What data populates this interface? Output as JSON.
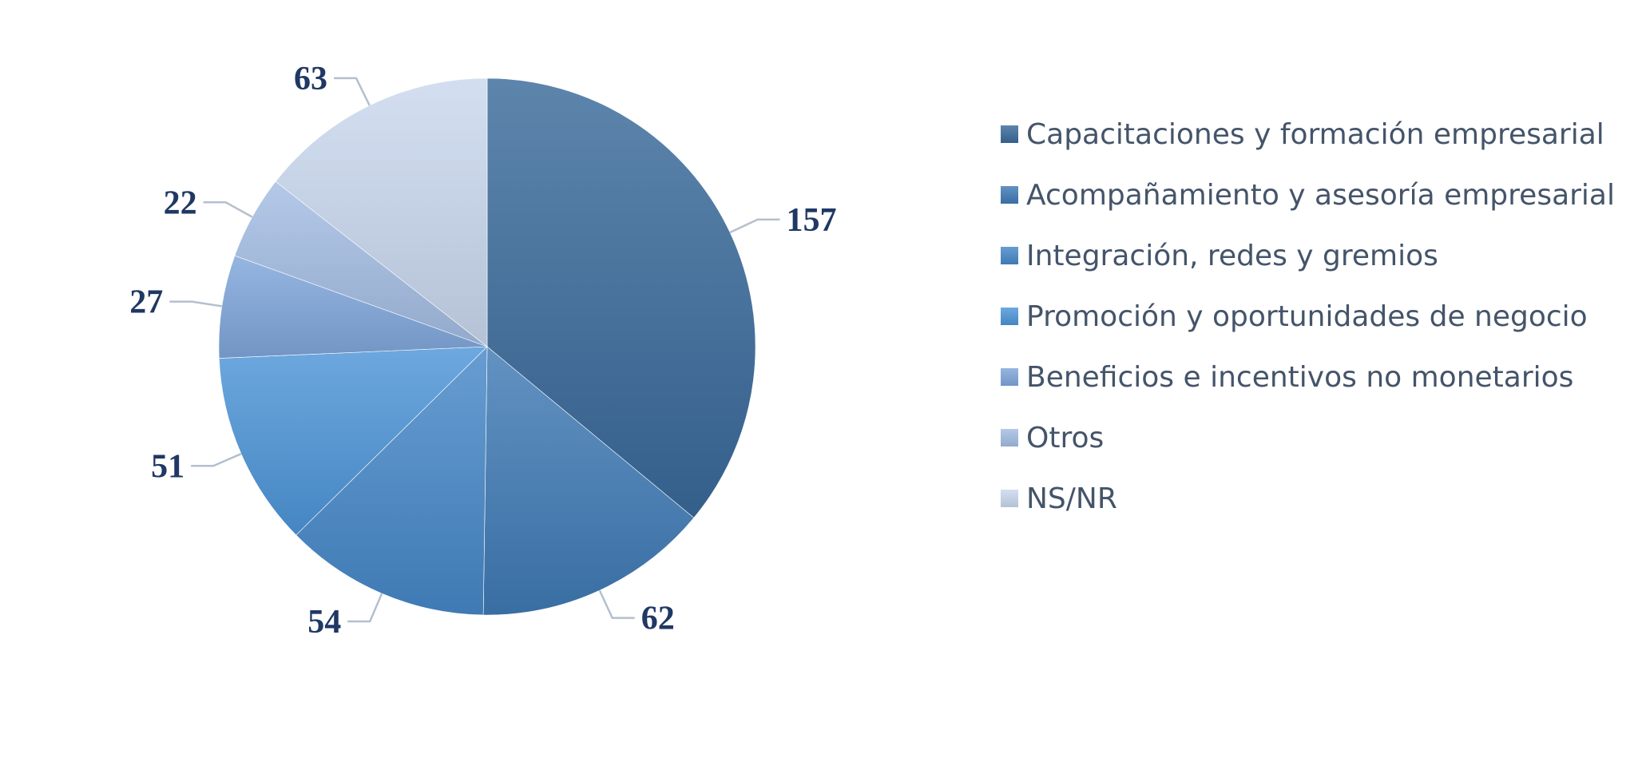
{
  "chart_data": {
    "type": "pie",
    "title": "",
    "categories": [
      "Capacitaciones y formación empresarial",
      "Acompañamiento y asesoría empresarial",
      "Integración, redes y gremios",
      "Promoción y oportunidades de negocio",
      "Beneficios e incentivos no monetarios",
      "Otros",
      "NS/NR"
    ],
    "values": [
      157,
      62,
      54,
      51,
      27,
      22,
      63
    ],
    "data_labels": [
      "157",
      "62",
      "54",
      "51",
      "27",
      "22",
      "63"
    ],
    "colors": [
      "#3a6a9a",
      "#3f7ab5",
      "#4687c8",
      "#4d95d8",
      "#7fa6db",
      "#a3bde3",
      "#c9d8ee"
    ],
    "legend_position": "right",
    "start_angle": "12 o'clock",
    "direction": "clockwise"
  }
}
